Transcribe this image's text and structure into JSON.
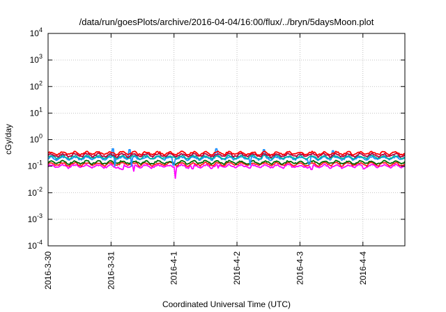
{
  "chart_data": {
    "type": "line",
    "title": "/data/run/goesPlots/archive/2016-04-04/16:00/flux/../bryn/5daysMoon.plot",
    "xlabel": "Coordinated Universal Time (UTC)",
    "ylabel": "cGy/day",
    "yscale": "log",
    "ylim": [
      0.0001,
      10000
    ],
    "xlim": [
      "2016-03-30T00:00",
      "2016-04-04T16:00"
    ],
    "grid": true,
    "y_ticks": [
      {
        "value": 0.0001,
        "base": "10",
        "exp": "-4"
      },
      {
        "value": 0.001,
        "base": "10",
        "exp": "-3"
      },
      {
        "value": 0.01,
        "base": "10",
        "exp": "-2"
      },
      {
        "value": 0.1,
        "base": "10",
        "exp": "-1"
      },
      {
        "value": 1,
        "base": "10",
        "exp": "0"
      },
      {
        "value": 10,
        "base": "10",
        "exp": "1"
      },
      {
        "value": 100,
        "base": "10",
        "exp": "2"
      },
      {
        "value": 1000,
        "base": "10",
        "exp": "3"
      },
      {
        "value": 10000,
        "base": "10",
        "exp": "4"
      }
    ],
    "x_ticks": [
      "2016-3-30",
      "2016-3-31",
      "2016-4-1",
      "2016-4-2",
      "2016-4-3",
      "2016-4-4"
    ],
    "series": [
      {
        "color": "#ff00ff",
        "level": 0.1,
        "dips": [
          [
            1.15,
            0.08
          ],
          [
            1.18,
            0.075
          ],
          [
            1.36,
            0.065
          ],
          [
            2.02,
            0.035
          ],
          [
            2.3,
            0.08
          ],
          [
            2.7,
            0.085
          ],
          [
            3.2,
            0.085
          ],
          [
            4.18,
            0.075
          ],
          [
            5.02,
            0.08
          ]
        ]
      },
      {
        "color": "#ff2020",
        "level": 0.12,
        "dips": []
      },
      {
        "color": "#006400",
        "level": 0.14,
        "dips": []
      },
      {
        "color": "#1e90ff",
        "level": 0.2,
        "dips": [
          [
            1.05,
            0.1
          ],
          [
            1.31,
            0.1
          ],
          [
            1.99,
            0.11
          ],
          [
            3.21,
            0.11
          ],
          [
            4.15,
            0.12
          ]
        ],
        "spikes": [
          [
            1.03,
            0.45
          ],
          [
            1.3,
            0.42
          ],
          [
            2.68,
            0.45
          ],
          [
            3.43,
            0.42
          ],
          [
            4.52,
            0.38
          ]
        ]
      },
      {
        "color": "#00b0a0",
        "level": 0.22,
        "dips": [],
        "spikes": []
      },
      {
        "color": "#b00040",
        "level": 0.26,
        "dips": []
      },
      {
        "color": "#ff0000",
        "level": 0.31,
        "dips": []
      }
    ]
  }
}
